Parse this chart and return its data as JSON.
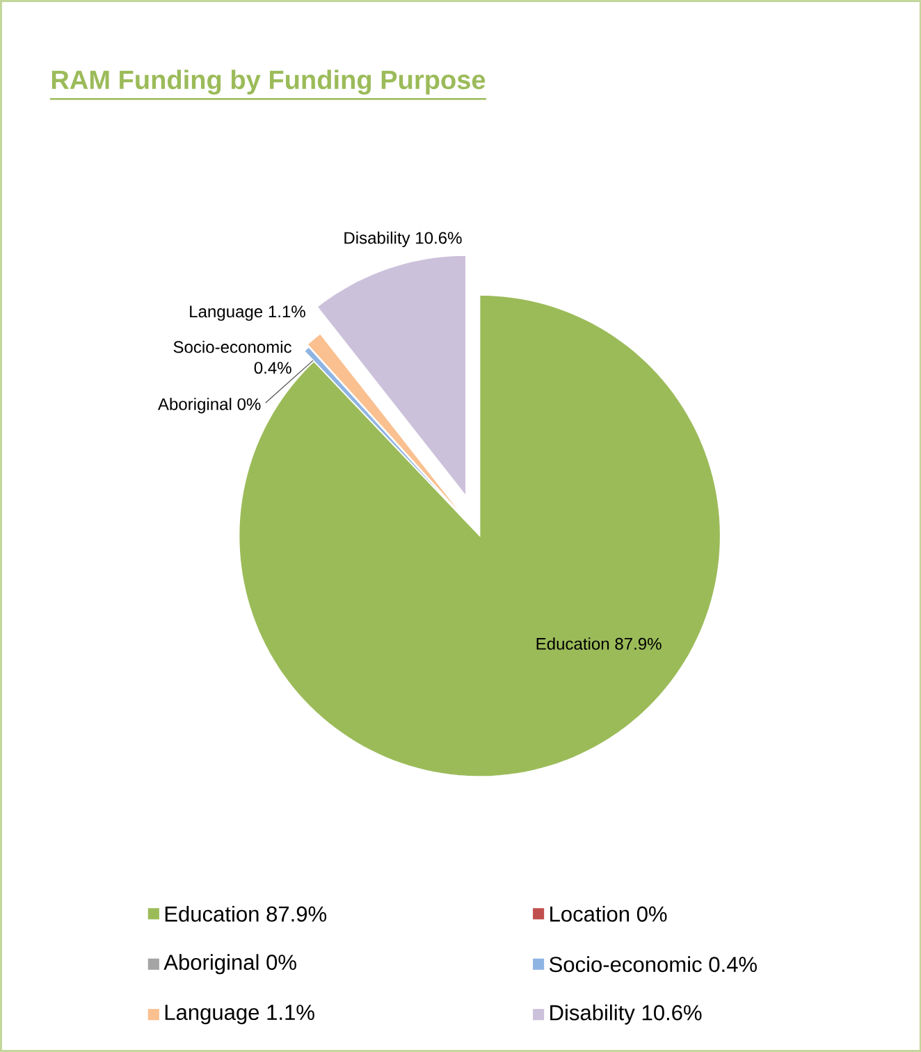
{
  "chart_data": {
    "type": "pie",
    "title": "RAM Funding by Funding Purpose",
    "categories": [
      "Education",
      "Location",
      "Aboriginal",
      "Socio-economic",
      "Language",
      "Disability"
    ],
    "values": [
      87.9,
      0,
      0,
      0.4,
      1.1,
      10.6
    ],
    "value_labels": [
      "87.9%",
      "0%",
      "0%",
      "0.4%",
      "1.1%",
      "10.6%"
    ],
    "colors": [
      "#9bbb59",
      "#c0504d",
      "#a5a5a5",
      "#8eb4e3",
      "#fac090",
      "#ccc1da"
    ],
    "data_labels": true,
    "legend": "bottom"
  }
}
